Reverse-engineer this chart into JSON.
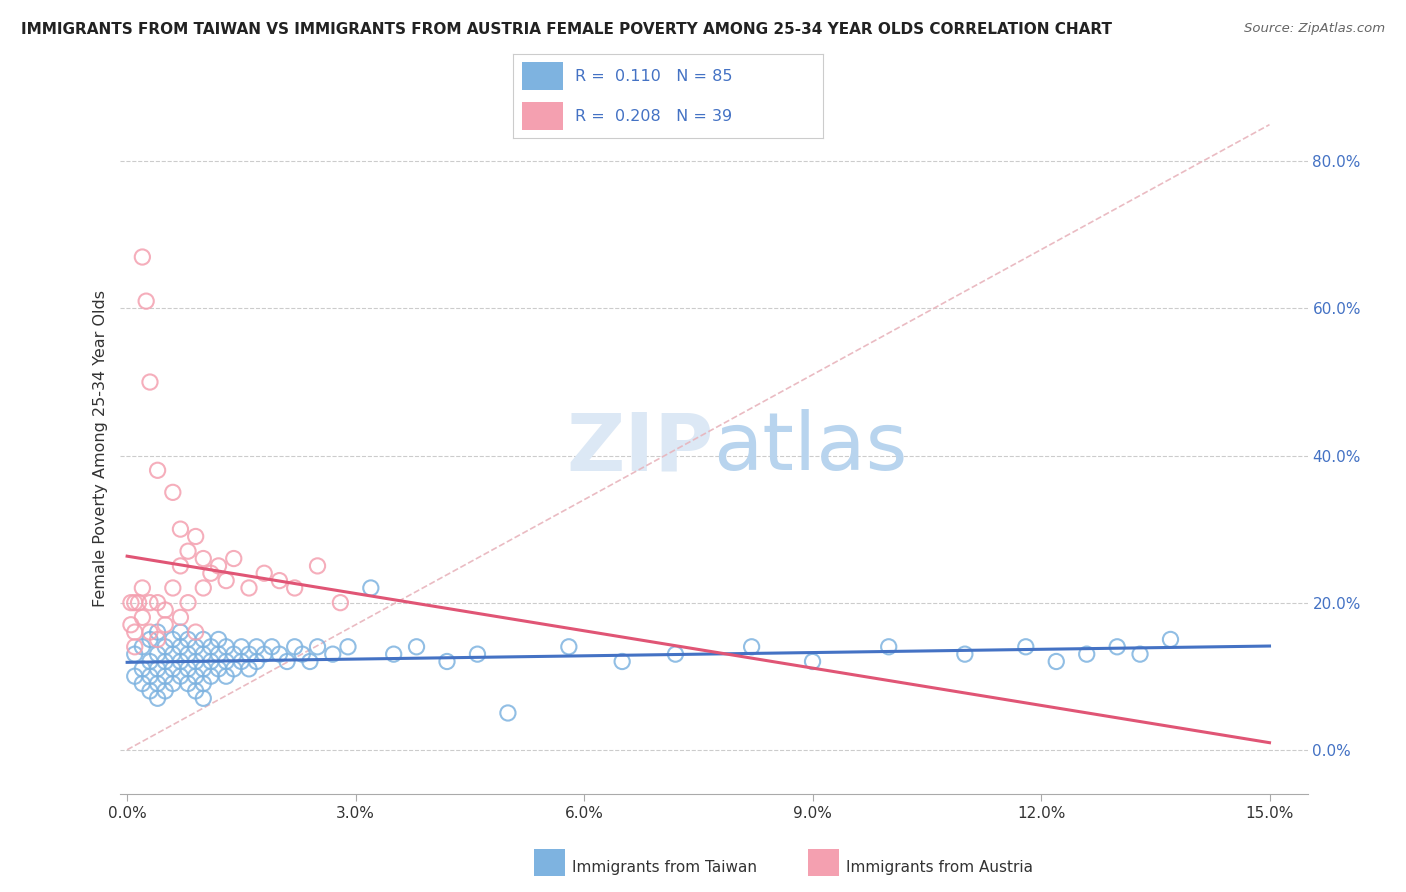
{
  "title": "IMMIGRANTS FROM TAIWAN VS IMMIGRANTS FROM AUSTRIA FEMALE POVERTY AMONG 25-34 YEAR OLDS CORRELATION CHART",
  "source": "Source: ZipAtlas.com",
  "ylabel": "Female Poverty Among 25-34 Year Olds",
  "legend_taiwan": "Immigrants from Taiwan",
  "legend_austria": "Immigrants from Austria",
  "R_taiwan": 0.11,
  "N_taiwan": 85,
  "R_austria": 0.208,
  "N_austria": 39,
  "xlim": [
    -0.001,
    0.155
  ],
  "ylim": [
    -0.06,
    0.88
  ],
  "xticks": [
    0.0,
    0.03,
    0.06,
    0.09,
    0.12,
    0.15
  ],
  "yticks_right": [
    0.0,
    0.2,
    0.4,
    0.6,
    0.8
  ],
  "color_taiwan": "#7eb3e0",
  "color_austria": "#f4a0b0",
  "trendline_taiwan": "#4472c4",
  "trendline_austria": "#e05575",
  "diag_color": "#e8b4bc",
  "background": "#ffffff",
  "taiwan_x": [
    0.001,
    0.001,
    0.002,
    0.002,
    0.002,
    0.003,
    0.003,
    0.003,
    0.003,
    0.004,
    0.004,
    0.004,
    0.004,
    0.004,
    0.005,
    0.005,
    0.005,
    0.005,
    0.006,
    0.006,
    0.006,
    0.006,
    0.007,
    0.007,
    0.007,
    0.007,
    0.008,
    0.008,
    0.008,
    0.008,
    0.009,
    0.009,
    0.009,
    0.009,
    0.01,
    0.01,
    0.01,
    0.01,
    0.01,
    0.011,
    0.011,
    0.011,
    0.012,
    0.012,
    0.012,
    0.013,
    0.013,
    0.013,
    0.014,
    0.014,
    0.015,
    0.015,
    0.016,
    0.016,
    0.017,
    0.017,
    0.018,
    0.019,
    0.02,
    0.021,
    0.022,
    0.023,
    0.024,
    0.025,
    0.027,
    0.029,
    0.032,
    0.035,
    0.038,
    0.042,
    0.046,
    0.05,
    0.058,
    0.065,
    0.072,
    0.082,
    0.09,
    0.1,
    0.11,
    0.118,
    0.122,
    0.126,
    0.13,
    0.133,
    0.137
  ],
  "taiwan_y": [
    0.13,
    0.1,
    0.14,
    0.11,
    0.09,
    0.15,
    0.12,
    0.1,
    0.08,
    0.16,
    0.13,
    0.11,
    0.09,
    0.07,
    0.14,
    0.12,
    0.1,
    0.08,
    0.15,
    0.13,
    0.11,
    0.09,
    0.16,
    0.14,
    0.12,
    0.1,
    0.15,
    0.13,
    0.11,
    0.09,
    0.14,
    0.12,
    0.1,
    0.08,
    0.15,
    0.13,
    0.11,
    0.09,
    0.07,
    0.14,
    0.12,
    0.1,
    0.15,
    0.13,
    0.11,
    0.14,
    0.12,
    0.1,
    0.13,
    0.11,
    0.14,
    0.12,
    0.13,
    0.11,
    0.14,
    0.12,
    0.13,
    0.14,
    0.13,
    0.12,
    0.14,
    0.13,
    0.12,
    0.14,
    0.13,
    0.14,
    0.22,
    0.13,
    0.14,
    0.12,
    0.13,
    0.05,
    0.14,
    0.12,
    0.13,
    0.14,
    0.12,
    0.14,
    0.13,
    0.14,
    0.12,
    0.13,
    0.14,
    0.13,
    0.15
  ],
  "austria_x": [
    0.0005,
    0.0005,
    0.001,
    0.001,
    0.001,
    0.0015,
    0.002,
    0.002,
    0.002,
    0.0025,
    0.003,
    0.003,
    0.003,
    0.004,
    0.004,
    0.004,
    0.005,
    0.005,
    0.006,
    0.006,
    0.007,
    0.007,
    0.007,
    0.008,
    0.008,
    0.009,
    0.009,
    0.01,
    0.01,
    0.011,
    0.012,
    0.013,
    0.014,
    0.016,
    0.018,
    0.02,
    0.022,
    0.025,
    0.028
  ],
  "austria_y": [
    0.2,
    0.17,
    0.2,
    0.16,
    0.14,
    0.2,
    0.67,
    0.22,
    0.18,
    0.61,
    0.2,
    0.16,
    0.5,
    0.38,
    0.2,
    0.15,
    0.19,
    0.17,
    0.35,
    0.22,
    0.3,
    0.25,
    0.18,
    0.27,
    0.2,
    0.29,
    0.16,
    0.26,
    0.22,
    0.24,
    0.25,
    0.23,
    0.26,
    0.22,
    0.24,
    0.23,
    0.22,
    0.25,
    0.2
  ]
}
